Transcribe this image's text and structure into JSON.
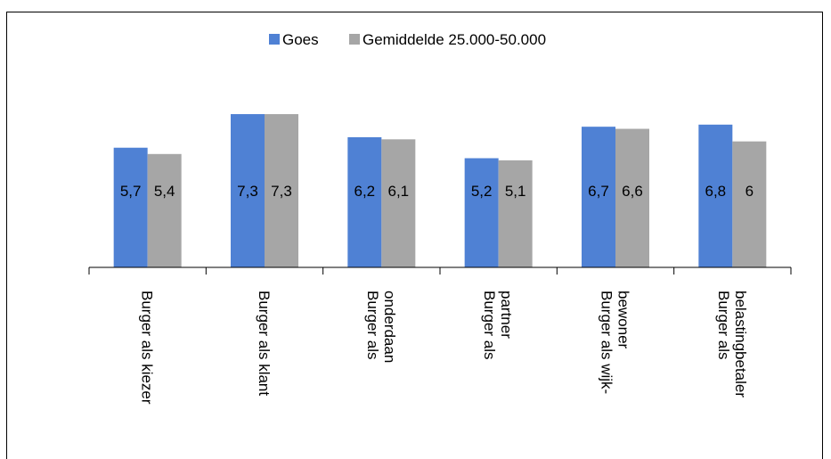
{
  "chart_data": {
    "type": "bar",
    "title": "",
    "xlabel": "",
    "ylabel": "",
    "ylim": [
      0,
      9
    ],
    "grid": false,
    "legend_position": "top",
    "categories": [
      [
        "Burger als kiezer"
      ],
      [
        "Burger als klant"
      ],
      [
        "Burger als",
        "onderdaan"
      ],
      [
        "Burger als",
        "partner"
      ],
      [
        "Burger als wijk-",
        "bewoner"
      ],
      [
        "Burger als",
        "belastingbetaler"
      ]
    ],
    "series": [
      {
        "name": "Goes",
        "color": "#4f81d4",
        "values": [
          5.7,
          7.3,
          6.2,
          5.2,
          6.7,
          6.8
        ],
        "labels": [
          "5,7",
          "7,3",
          "6,2",
          "5,2",
          "6,7",
          "6,8"
        ]
      },
      {
        "name": "Gemiddelde 25.000-50.000",
        "color": "#a6a6a6",
        "values": [
          5.4,
          7.3,
          6.1,
          5.1,
          6.6,
          6.0
        ],
        "labels": [
          "5,4",
          "7,3",
          "6,1",
          "5,1",
          "6,6",
          "6"
        ]
      }
    ]
  }
}
